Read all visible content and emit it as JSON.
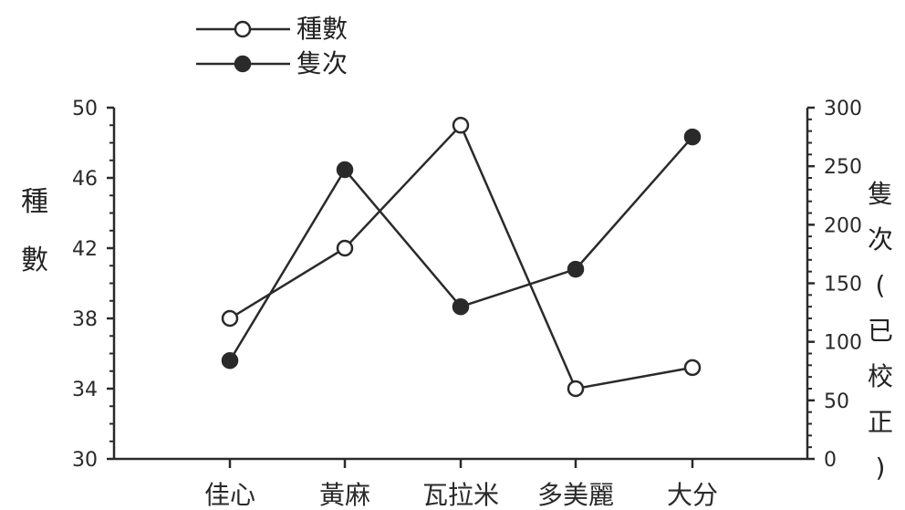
{
  "chart_data": {
    "type": "line",
    "categories": [
      "佳心",
      "黃麻",
      "瓦拉米",
      "多美麗",
      "大分"
    ],
    "series": [
      {
        "name": "種數",
        "axis": "left",
        "marker": "open-circle",
        "values": [
          38,
          42,
          49,
          34,
          35.2
        ]
      },
      {
        "name": "隻次",
        "axis": "right",
        "marker": "filled-circle",
        "values": [
          84,
          247,
          130,
          162,
          275
        ]
      }
    ],
    "ylabel_left": [
      "種",
      "數"
    ],
    "ylabel_right": [
      "隻",
      "次",
      "(",
      "已",
      "校",
      "正",
      ")"
    ],
    "y_left": {
      "range": [
        30,
        50
      ],
      "ticks": [
        30,
        34,
        38,
        42,
        46,
        50
      ]
    },
    "y_right": {
      "range": [
        0,
        300
      ],
      "ticks": [
        0,
        50,
        100,
        150,
        200,
        250,
        300
      ]
    },
    "legend_position": "top-left",
    "grid": false,
    "colors": {
      "line": "#2a2a2a",
      "open_marker_fill": "#ffffff"
    }
  }
}
